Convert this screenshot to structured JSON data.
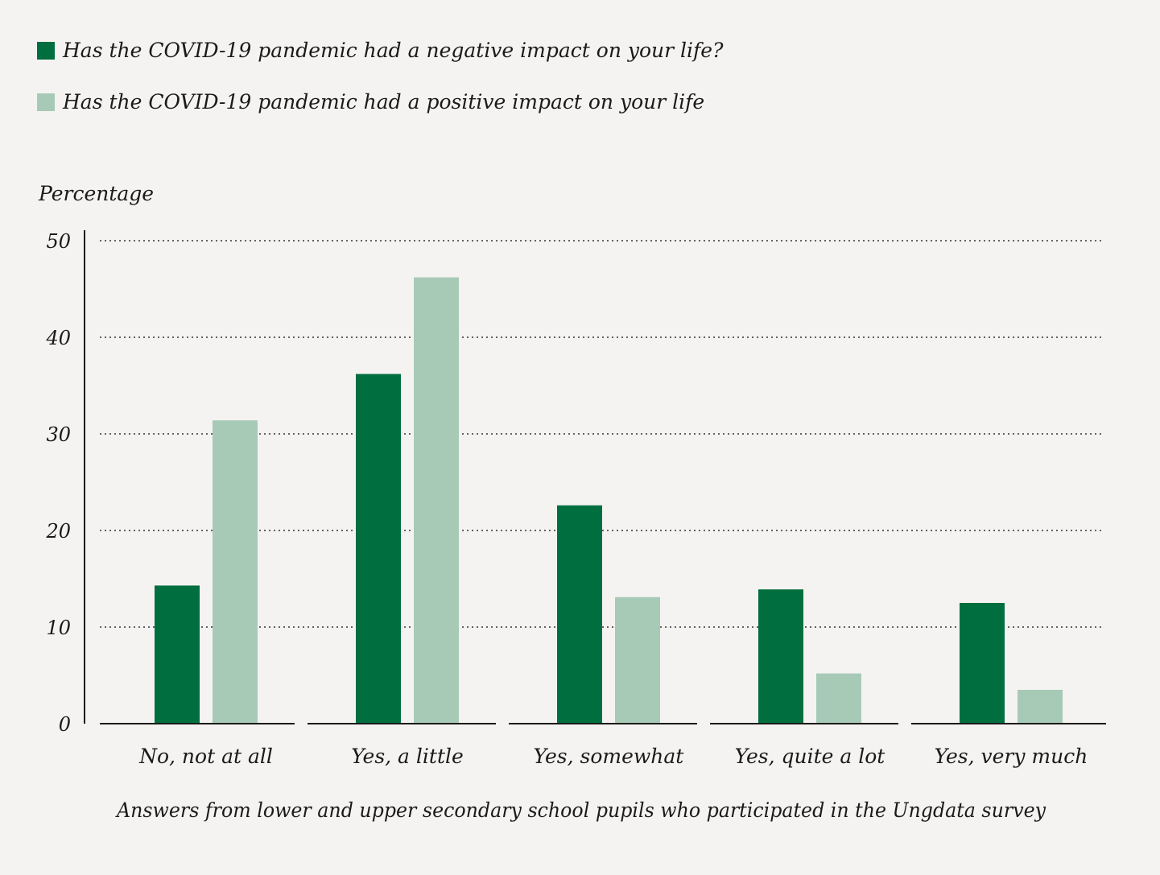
{
  "colors": {
    "negative": "#006e3f",
    "positive": "#a7cab7",
    "background": "#f4f3f1",
    "axis": "#1a1a1a",
    "grid": "#333333"
  },
  "legend": [
    {
      "label": "Has the COVID-19 pandemic had a negative impact on your life?",
      "series": "negative"
    },
    {
      "label": "Has the COVID-19 pandemic had a positive impact on your life",
      "series": "positive"
    }
  ],
  "chart_data": {
    "type": "bar",
    "ylabel": "Percentage",
    "xlabel": "Answers from lower and upper secondary school pupils who participated in the Ungdata survey",
    "categories": [
      "No, not at all",
      "Yes, a little",
      "Yes, somewhat",
      "Yes, quite a lot",
      "Yes, very much"
    ],
    "series": [
      {
        "name": "Has the COVID-19 pandemic had a negative impact on your life?",
        "color": "#006e3f",
        "values": [
          14.3,
          36.2,
          22.6,
          13.9,
          12.5
        ]
      },
      {
        "name": "Has the COVID-19 pandemic had a positive impact on your life",
        "color": "#a7cab7",
        "values": [
          31.4,
          46.2,
          13.1,
          5.2,
          3.5
        ]
      }
    ],
    "ylim": [
      0,
      50
    ],
    "yticks": [
      0,
      10,
      20,
      30,
      40,
      50
    ],
    "grid": "dotted horizontal",
    "legend_position": "top-left"
  }
}
